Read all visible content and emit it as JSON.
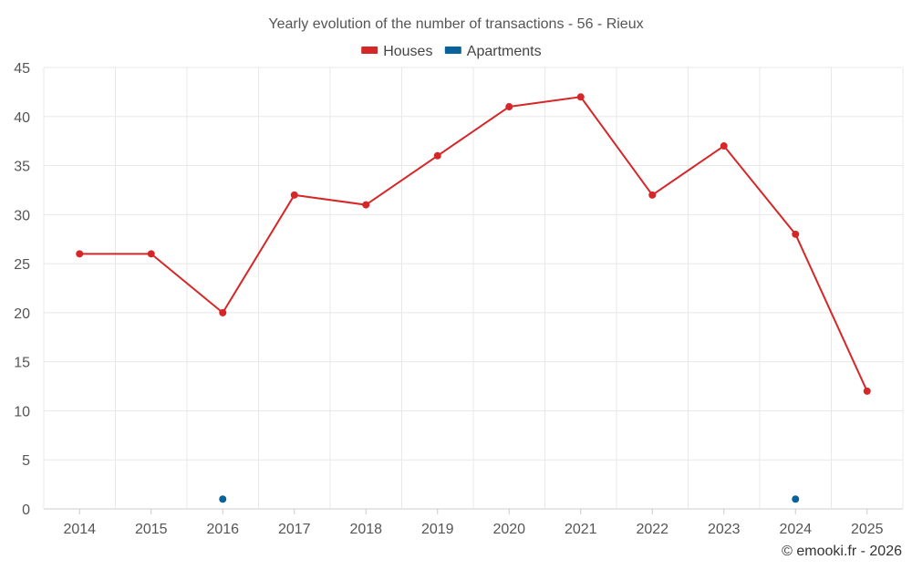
{
  "chart_data": {
    "type": "line",
    "title": "Yearly evolution of the number of transactions - 56 - Rieux",
    "categories": [
      "2014",
      "2015",
      "2016",
      "2017",
      "2018",
      "2019",
      "2020",
      "2021",
      "2022",
      "2023",
      "2024",
      "2025"
    ],
    "series": [
      {
        "name": "Houses",
        "color": "#d62728",
        "values": [
          26,
          26,
          20,
          32,
          31,
          36,
          41,
          42,
          32,
          37,
          28,
          12
        ],
        "line": true
      },
      {
        "name": "Apartments",
        "color": "#08639c",
        "values": [
          null,
          null,
          1,
          null,
          null,
          null,
          null,
          null,
          null,
          null,
          1,
          null
        ],
        "line": false
      }
    ],
    "ylim": [
      0,
      45
    ],
    "yticks": [
      0,
      5,
      10,
      15,
      20,
      25,
      30,
      35,
      40,
      45
    ],
    "xlabel": "",
    "ylabel": "",
    "grid": true,
    "legend_position": "top-center"
  },
  "credit": "© emooki.fr - 2026"
}
